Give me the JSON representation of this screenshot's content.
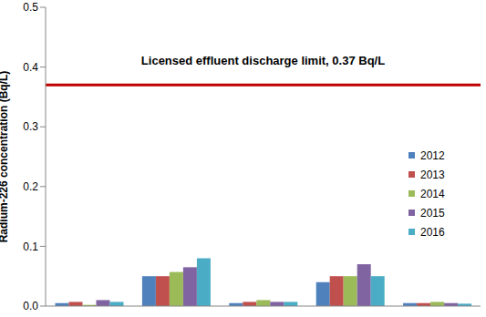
{
  "chart_data": {
    "type": "bar",
    "y_label": "Radium-226 concentration (Bq/L)",
    "categories": [
      null,
      null,
      null,
      null,
      null
    ],
    "series": [
      {
        "name": "2012",
        "color": "#4f81bd",
        "values": [
          0.005,
          0.05,
          0.005,
          0.04,
          0.005
        ]
      },
      {
        "name": "2013",
        "color": "#c0504d",
        "values": [
          0.007,
          0.05,
          0.007,
          0.05,
          0.005
        ]
      },
      {
        "name": "2014",
        "color": "#9bbb59",
        "values": [
          0.002,
          0.057,
          0.01,
          0.05,
          0.007
        ]
      },
      {
        "name": "2015",
        "color": "#8064a2",
        "values": [
          0.01,
          0.065,
          0.007,
          0.07,
          0.005
        ]
      },
      {
        "name": "2016",
        "color": "#4bacc6",
        "values": [
          0.007,
          0.08,
          0.007,
          0.05,
          0.004
        ]
      }
    ],
    "ylim": [
      0,
      0.5
    ],
    "yticks": [
      {
        "value": 0,
        "label": "0.0"
      },
      0.1,
      0.2,
      0.3,
      0.4,
      0.5
    ],
    "reference_lines": [
      {
        "y": 0.37,
        "label": "Licensed effluent discharge limit, 0.37 Bq/L",
        "color": "#c00000"
      }
    ],
    "grid": false,
    "legend": "right",
    "tick_labels": "y"
  }
}
